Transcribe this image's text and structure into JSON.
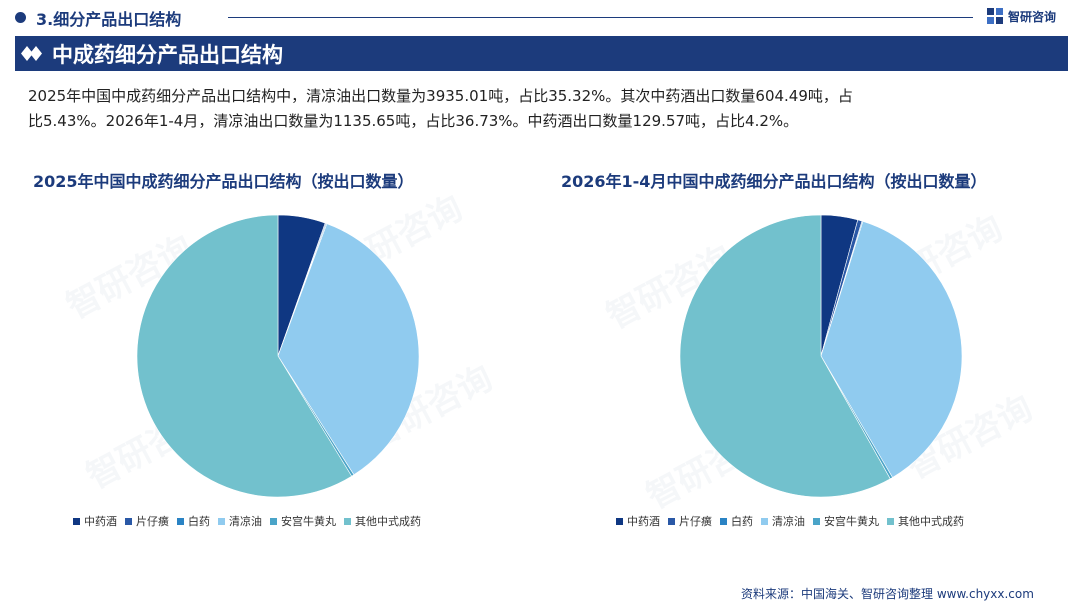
{
  "header": {
    "section_title": "3.细分产品出口结构",
    "brand_name": "智研咨询"
  },
  "banner": {
    "title": "中成药细分产品出口结构"
  },
  "summary": {
    "line1": "2025年中国中成药细分产品出口结构中，清凉油出口数量为3935.01吨，占比35.32%。其次中药酒出口数量604.49吨，占",
    "line2": "比5.43%。2026年1-4月，清凉油出口数量为1135.65吨，占比36.73%。中药酒出口数量129.57吨，占比4.2%。"
  },
  "watermark_text": "智研咨询",
  "source": "资料来源：中国海关、智研咨询整理  www.chyxx.com",
  "colors": {
    "primary": "#1c3b7c",
    "series": [
      "#0f3782",
      "#2a58a6",
      "#2a83c4",
      "#90cbef",
      "#4aa4c8",
      "#72c1cd"
    ]
  },
  "chart_data": [
    {
      "type": "pie",
      "title": "2025年中国中成药细分产品出口结构（按出口数量）",
      "categories": [
        "中药酒",
        "片仔癀",
        "白药",
        "清凉油",
        "安宫牛黄丸",
        "其他中式成药"
      ],
      "values": [
        5.43,
        0.1,
        0.1,
        35.32,
        0.3,
        58.75
      ],
      "legend_position": "bottom"
    },
    {
      "type": "pie",
      "title": "2026年1-4月中国中成药细分产品出口结构（按出口数量）",
      "categories": [
        "中药酒",
        "片仔癀",
        "白药",
        "清凉油",
        "安宫牛黄丸",
        "其他中式成药"
      ],
      "values": [
        4.2,
        0.5,
        0.1,
        36.73,
        0.3,
        58.17
      ],
      "legend_position": "bottom"
    }
  ]
}
